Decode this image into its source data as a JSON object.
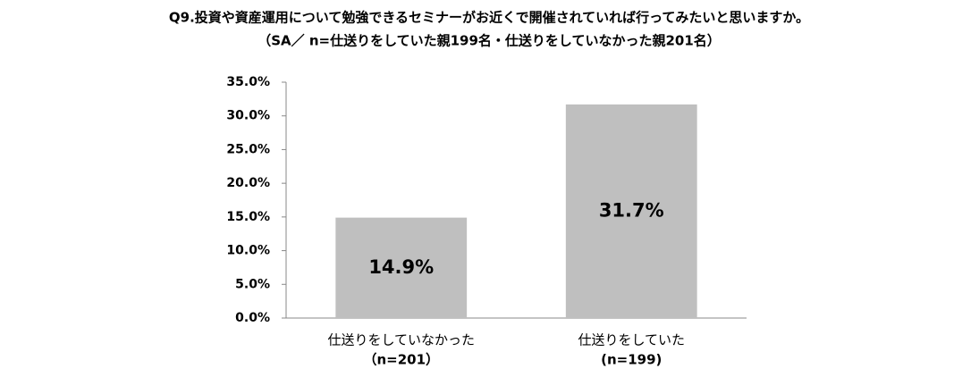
{
  "chart_data": {
    "type": "bar",
    "title": "Q9.投資や資産運用について勉強できるセミナーがお近くで開催されていれば行ってみたいと思いますか。",
    "subtitle": "（SA／ n=仕送りをしていた親199名・仕送りをしていなかった親201名）",
    "categories": [
      [
        "仕送りをしていなかった",
        "（n=201）"
      ],
      [
        "仕送りをしていた",
        "(n=199)"
      ]
    ],
    "values": [
      14.9,
      31.7
    ],
    "value_labels": [
      "14.9%",
      "31.7%"
    ],
    "color": "#bfbfbf",
    "ylim": [
      0,
      35
    ],
    "yticks": [
      {
        "value": 0,
        "label": "0.0%"
      },
      {
        "value": 5,
        "label": "5.0%"
      },
      {
        "value": 10,
        "label": "10.0%"
      },
      {
        "value": 15,
        "label": "15.0%"
      },
      {
        "value": 20,
        "label": "20.0%"
      },
      {
        "value": 25,
        "label": "25.0%"
      },
      {
        "value": 30,
        "label": "30.0%"
      },
      {
        "value": 35,
        "label": "35.0%"
      }
    ],
    "grid": false
  }
}
